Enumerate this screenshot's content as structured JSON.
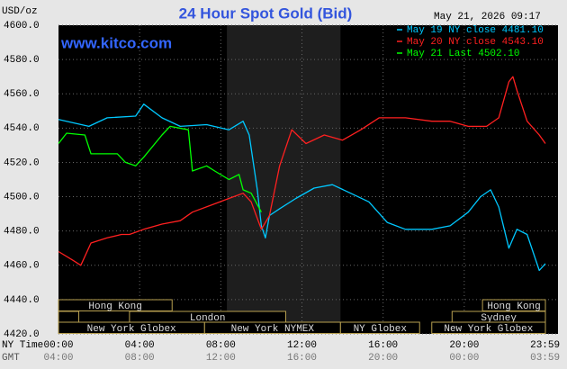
{
  "chart_data": {
    "type": "line",
    "title": "24 Hour Spot Gold (Bid)",
    "y_label": "USD/oz",
    "timestamp": "May 21, 2026 09:17",
    "watermark": "www.kitco.com",
    "x_row_labels": [
      "NY Time",
      "GMT"
    ],
    "xlim": [
      0,
      24
    ],
    "ylim": [
      4420,
      4600
    ],
    "yticks": [
      {
        "value": 4420,
        "label": "4420.0"
      },
      {
        "value": 4440,
        "label": "4440.0"
      },
      {
        "value": 4460,
        "label": "4460.0"
      },
      {
        "value": 4480,
        "label": "4480.0"
      },
      {
        "value": 4500,
        "label": "4500.0"
      },
      {
        "value": 4520,
        "label": "4520.0"
      },
      {
        "value": 4540,
        "label": "4540.0"
      },
      {
        "value": 4560,
        "label": "4560.0"
      },
      {
        "value": 4580,
        "label": "4580.0"
      },
      {
        "value": 4600,
        "label": "4600.0"
      }
    ],
    "xticks": [
      {
        "value": 0,
        "label": "00:00"
      },
      {
        "value": 4,
        "label": "04:00"
      },
      {
        "value": 8,
        "label": "08:00"
      },
      {
        "value": 12,
        "label": "12:00"
      },
      {
        "value": 16,
        "label": "16:00"
      },
      {
        "value": 20,
        "label": "20:00"
      },
      {
        "value": 23.983,
        "label": "23:59"
      }
    ],
    "x2ticks": [
      {
        "value": 0,
        "label": "04:00"
      },
      {
        "value": 4,
        "label": "08:00"
      },
      {
        "value": 8,
        "label": "12:00"
      },
      {
        "value": 12,
        "label": "16:00"
      },
      {
        "value": 16,
        "label": "20:00"
      },
      {
        "value": 20,
        "label": "00:00"
      },
      {
        "value": 23.983,
        "label": "03:59"
      }
    ],
    "grid": true,
    "highlight": {
      "start": 8.3,
      "end": 13.9
    },
    "sessions": [
      {
        "name": "Hong Kong",
        "start": 0,
        "end": 5.6,
        "row": 0
      },
      {
        "start": 0,
        "end": 1,
        "row": 1
      },
      {
        "name": "London",
        "start": 3.5,
        "end": 11.2,
        "row": 1
      },
      {
        "name": "New York Globex",
        "start": 0,
        "end": 7.2,
        "row": 2
      },
      {
        "name": "New York NYMEX",
        "start": 7.2,
        "end": 13.9,
        "row": 2
      },
      {
        "name": "NY Globex",
        "start": 13.9,
        "end": 17.8,
        "row": 2
      },
      {
        "name": "Hong Kong",
        "start": 20.9,
        "end": 24,
        "row": 0
      },
      {
        "name": "Sydney",
        "start": 19.4,
        "end": 24,
        "row": 1
      },
      {
        "name": "New York Globex",
        "start": 18.4,
        "end": 24,
        "row": 2
      }
    ],
    "series": [
      {
        "name": "May 19 NY close 4481.10",
        "color": "#00c8ff",
        "x": [
          0,
          1.5,
          2.4,
          3.8,
          4.2,
          5.1,
          6.0,
          7.3,
          8.4,
          9.1,
          9.4,
          9.8,
          10.0,
          10.2,
          10.4,
          10.9,
          11.7,
          12.6,
          13.5,
          14.4,
          15.3,
          16.2,
          17.1,
          18.4,
          19.3,
          20.2,
          20.8,
          21.3,
          21.7,
          22.2,
          22.6,
          23.1,
          23.7,
          24.0
        ],
        "values": [
          4545,
          4541,
          4546,
          4547,
          4554,
          4546,
          4541,
          4542,
          4539,
          4544,
          4536,
          4504,
          4483,
          4476,
          4489,
          4493,
          4499,
          4505,
          4507,
          4502,
          4497,
          4485,
          4481,
          4481,
          4483,
          4491,
          4500,
          4504,
          4494,
          4470,
          4481,
          4478,
          4457,
          4461
        ]
      },
      {
        "name": "May 20 NY close 4543.10",
        "color": "#ff2020",
        "x": [
          0,
          0.7,
          1.1,
          1.6,
          2.4,
          3.1,
          3.5,
          4.2,
          5.1,
          6.0,
          6.6,
          7.5,
          8.4,
          9.1,
          9.5,
          10.0,
          10.4,
          10.9,
          11.5,
          12.2,
          13.1,
          14.0,
          14.9,
          15.8,
          17.1,
          18.4,
          19.3,
          20.2,
          21.1,
          21.7,
          22.2,
          22.4,
          22.6,
          23.1,
          23.7,
          24.0
        ],
        "values": [
          4468,
          4463,
          4460,
          4473,
          4476,
          4478,
          4478,
          4481,
          4484,
          4486,
          4491,
          4495,
          4499,
          4502,
          4497,
          4481,
          4489,
          4518,
          4539,
          4531,
          4536,
          4533,
          4539,
          4546,
          4546,
          4544,
          4544,
          4541,
          4541,
          4546,
          4567,
          4570,
          4562,
          4544,
          4536,
          4531
        ]
      },
      {
        "name": "May 21 Last 4502.10",
        "color": "#00ff00",
        "x": [
          0,
          0.4,
          1.3,
          1.6,
          2.9,
          3.3,
          3.8,
          4.2,
          5.1,
          5.5,
          6.4,
          6.6,
          7.3,
          7.7,
          8.4,
          8.9,
          9.1,
          9.5,
          10.0
        ],
        "values": [
          4531,
          4537,
          4536,
          4525,
          4525,
          4520,
          4518,
          4523,
          4536,
          4541,
          4539,
          4515,
          4518,
          4515,
          4510,
          4513,
          4504,
          4502,
          4491
        ]
      }
    ]
  }
}
